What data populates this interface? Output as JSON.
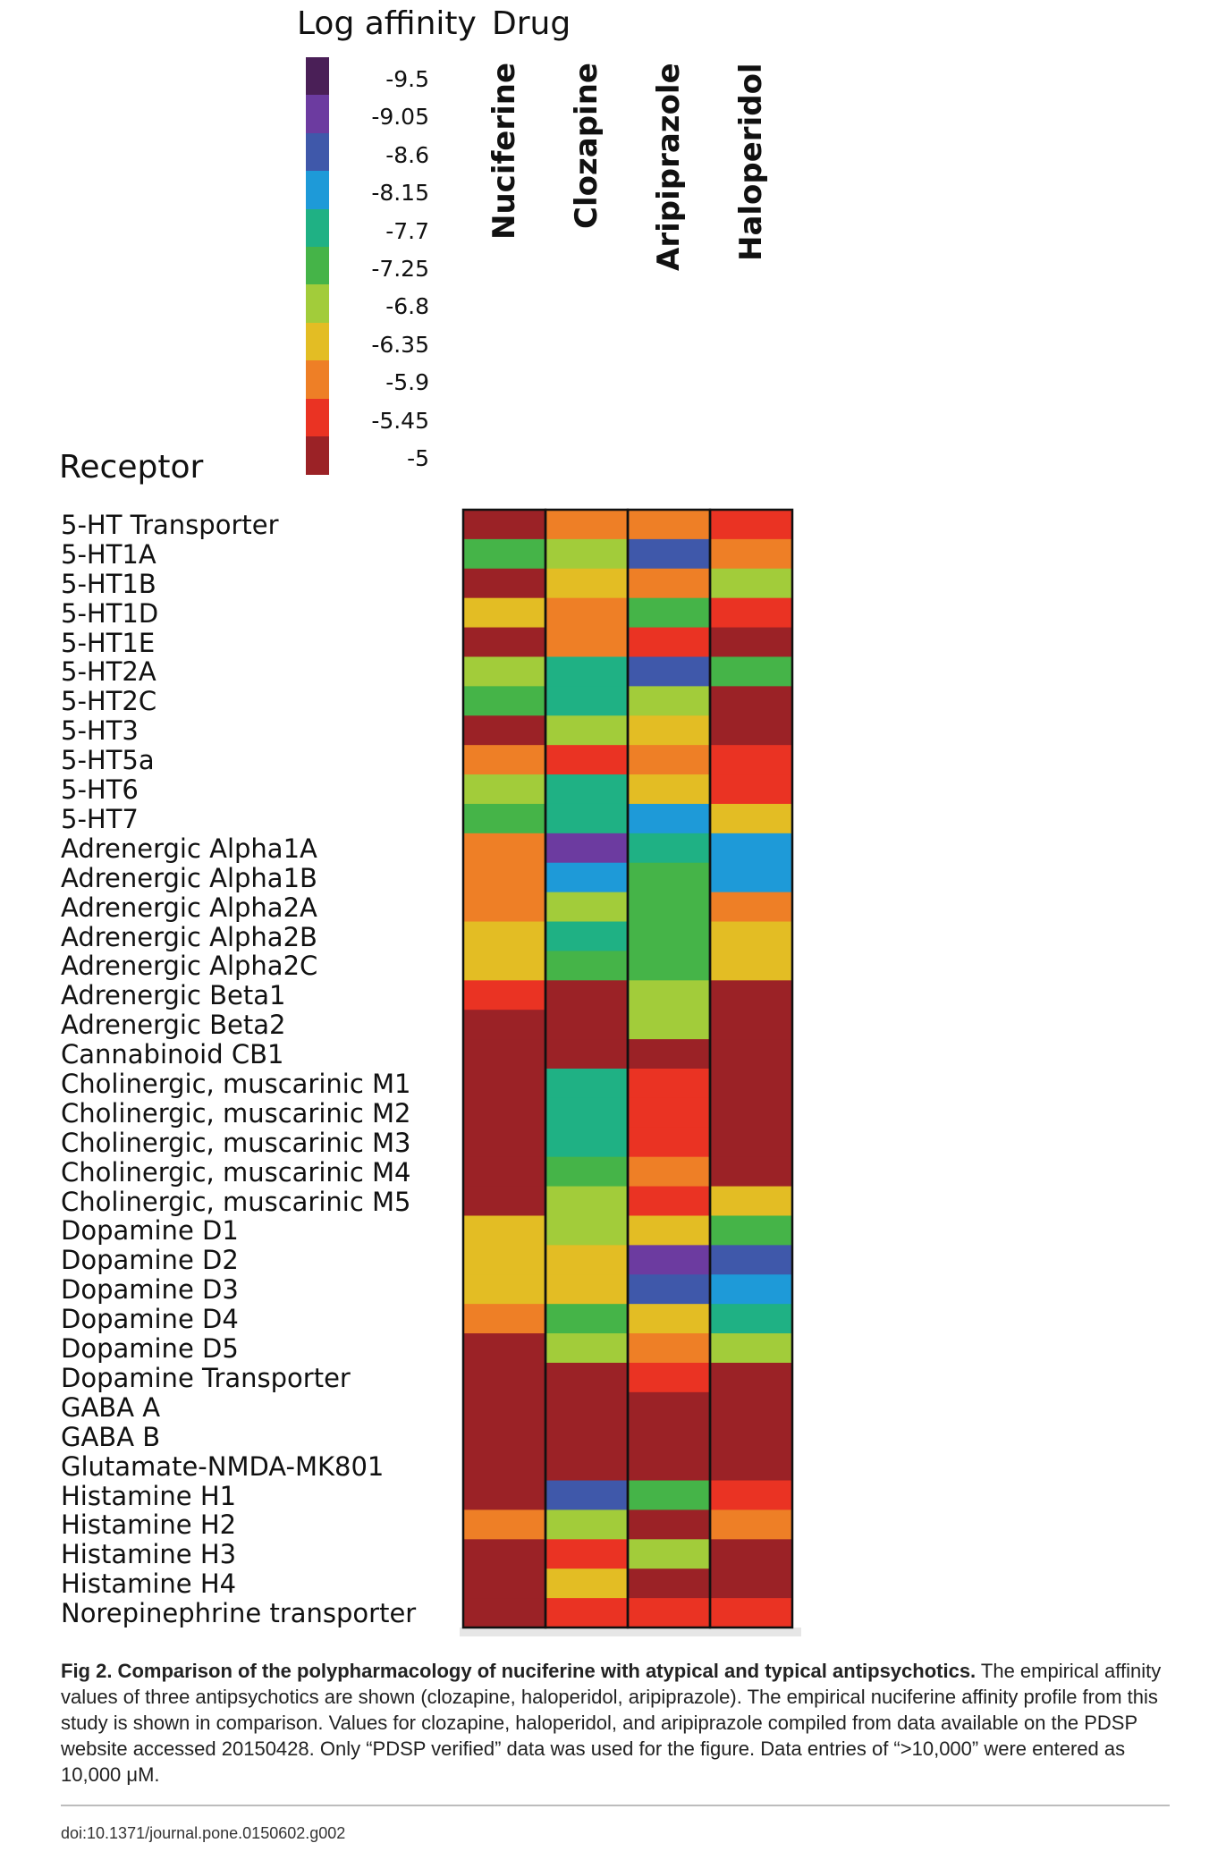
{
  "chart_data": {
    "type": "heatmap",
    "legend_title": "Log affinity",
    "columns_title": "Drug",
    "rows_title": "Receptor",
    "legend": [
      {
        "label": "-9.5",
        "color": "#4a1f57"
      },
      {
        "label": "-9.05",
        "color": "#6c3ba0"
      },
      {
        "label": "-8.6",
        "color": "#3f58aa"
      },
      {
        "label": "-8.15",
        "color": "#1e9ad8"
      },
      {
        "label": "-7.7",
        "color": "#1fb184"
      },
      {
        "label": "-7.25",
        "color": "#45b448"
      },
      {
        "label": "-6.8",
        "color": "#a2cc3a"
      },
      {
        "label": "-6.35",
        "color": "#e3bd24"
      },
      {
        "label": "-5.9",
        "color": "#ee7f26"
      },
      {
        "label": "-5.45",
        "color": "#ea3323"
      },
      {
        "label": "-5",
        "color": "#9b2226"
      }
    ],
    "columns": [
      "Nuciferine",
      "Clozapine",
      "Aripiprazole",
      "Haloperidol"
    ],
    "rows": [
      "5-HT Transporter",
      "5-HT1A",
      "5-HT1B",
      "5-HT1D",
      "5-HT1E",
      "5-HT2A",
      "5-HT2C",
      "5-HT3",
      "5-HT5a",
      "5-HT6",
      "5-HT7",
      "Adrenergic Alpha1A",
      "Adrenergic Alpha1B",
      "Adrenergic Alpha2A",
      "Adrenergic Alpha2B",
      "Adrenergic Alpha2C",
      "Adrenergic Beta1",
      "Adrenergic Beta2",
      "Cannabinoid CB1",
      "Cholinergic, muscarinic M1",
      "Cholinergic, muscarinic M2",
      "Cholinergic, muscarinic M3",
      "Cholinergic, muscarinic M4",
      "Cholinergic, muscarinic M5",
      "Dopamine D1",
      "Dopamine D2",
      "Dopamine D3",
      "Dopamine D4",
      "Dopamine D5",
      "Dopamine Transporter",
      "GABA A",
      "GABA B",
      "Glutamate-NMDA-MK801",
      "Histamine H1",
      "Histamine H2",
      "Histamine H3",
      "Histamine H4",
      "Norepinephrine transporter"
    ],
    "values": [
      [
        -5.0,
        -5.9,
        -5.9,
        -5.45
      ],
      [
        -7.25,
        -7.0,
        -8.45,
        -5.9
      ],
      [
        -5.0,
        -6.35,
        -6.1,
        -6.8
      ],
      [
        -6.35,
        -5.7,
        -7.25,
        -5.3
      ],
      [
        -5.0,
        -5.9,
        -5.3,
        -5.1
      ],
      [
        -6.6,
        -7.9,
        -8.6,
        -7.25
      ],
      [
        -7.25,
        -7.5,
        -6.8,
        -5.0
      ],
      [
        -5.0,
        -6.6,
        -6.2,
        -5.0
      ],
      [
        -5.9,
        -5.45,
        -5.9,
        -5.6
      ],
      [
        -6.6,
        -7.7,
        -6.2,
        -5.45
      ],
      [
        -7.25,
        -7.7,
        -8.0,
        -6.5
      ],
      [
        -5.9,
        -8.9,
        -7.5,
        -8.0
      ],
      [
        -5.7,
        -8.2,
        -7.25,
        -8.2
      ],
      [
        -5.9,
        -6.9,
        -7.25,
        -5.9
      ],
      [
        -6.2,
        -7.5,
        -7.1,
        -6.35
      ],
      [
        -6.2,
        -7.25,
        -7.25,
        -6.35
      ],
      [
        -5.3,
        -5.0,
        -6.9,
        -5.0
      ],
      [
        -5.0,
        -5.0,
        -6.8,
        -5.0
      ],
      [
        -5.0,
        -5.0,
        -5.0,
        -5.0
      ],
      [
        -5.0,
        -7.9,
        -5.3,
        -5.0
      ],
      [
        -5.0,
        -7.9,
        -5.45,
        -5.0
      ],
      [
        -5.0,
        -7.6,
        -5.45,
        -5.0
      ],
      [
        -5.0,
        -7.4,
        -5.7,
        -5.0
      ],
      [
        -5.0,
        -7.0,
        -5.6,
        -6.2
      ],
      [
        -6.2,
        -6.7,
        -6.5,
        -7.1
      ],
      [
        -6.35,
        -6.4,
        -9.05,
        -8.6
      ],
      [
        -6.2,
        -6.2,
        -8.6,
        -8.0
      ],
      [
        -5.9,
        -7.25,
        -6.35,
        -7.7
      ],
      [
        -5.0,
        -6.6,
        -5.9,
        -6.8
      ],
      [
        -5.0,
        -5.0,
        -5.5,
        -5.0
      ],
      [
        -5.0,
        -5.0,
        -5.0,
        -5.0
      ],
      [
        -5.0,
        -5.0,
        -5.0,
        -5.0
      ],
      [
        -5.0,
        -5.0,
        -5.0,
        -5.0
      ],
      [
        -5.0,
        -8.6,
        -7.25,
        -5.45
      ],
      [
        -5.8,
        -6.9,
        -5.0,
        -6.0
      ],
      [
        -5.0,
        -5.3,
        -6.6,
        -5.0
      ],
      [
        -5.0,
        -6.2,
        -5.0,
        -5.0
      ],
      [
        -5.0,
        -5.45,
        -5.6,
        -5.6
      ]
    ]
  },
  "caption": {
    "title": "Fig 2. Comparison of the polypharmacology of nuciferine with atypical and typical antipsychotics.",
    "text": "The empirical affinity values of three antipsychotics are shown (clozapine, haloperidol, aripiprazole). The empirical nuciferine affinity profile from this study is shown in comparison. Values for clozapine, haloperidol, and aripiprazole compiled from data available on the PDSP website accessed 20150428. Only “PDSP verified” data was used for the figure. Data entries of “>10,000” were entered as 10,000 μM."
  },
  "doi": "doi:10.1371/journal.pone.0150602.g002"
}
